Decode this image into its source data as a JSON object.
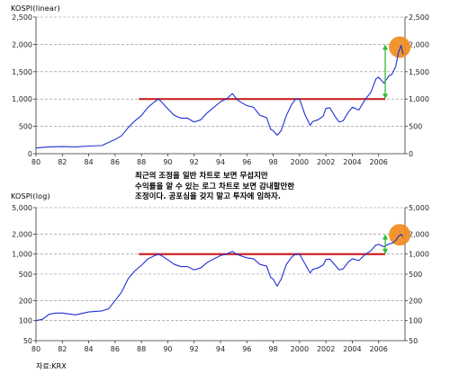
{
  "chart_data": [
    {
      "type": "line",
      "title": "KOSPI(linear)",
      "scale": "linear",
      "ylim": [
        0,
        2500
      ],
      "y_ticks": [
        0,
        500,
        1000,
        1500,
        2000,
        2500
      ],
      "y_tick_labels": [
        "0",
        "500",
        "1,000",
        "1,500",
        "2,000",
        "2,500"
      ],
      "xlim": [
        1980,
        2008
      ],
      "x_ticks": [
        1980,
        1982,
        1984,
        1986,
        1988,
        1990,
        1992,
        1994,
        1996,
        1998,
        2000,
        2002,
        2004,
        2006
      ],
      "x_tick_labels": [
        "80",
        "82",
        "84",
        "86",
        "88",
        "90",
        "92",
        "94",
        "96",
        "98",
        "2000",
        "2002",
        "2004",
        "2006"
      ],
      "grid": "horizontal dashed",
      "line_color": "#1f2fd6",
      "series": [
        {
          "x": [
            1980,
            1981,
            1982,
            1983,
            1984,
            1985,
            1986,
            1986.5,
            1987,
            1987.5,
            1988,
            1988.5,
            1989,
            1989.3,
            1989.6,
            1990,
            1990.5,
            1991,
            1991.5,
            1992,
            1992.5,
            1993,
            1993.5,
            1994,
            1994.5,
            1994.9,
            1995.3,
            1995.7,
            1996,
            1996.5,
            1997,
            1997.5,
            1997.8,
            1998,
            1998.3,
            1998.6,
            1999,
            1999.4,
            1999.7,
            2000,
            2000.4,
            2000.8,
            2001,
            2001.4,
            2001.8,
            2002,
            2002.3,
            2002.7,
            2003,
            2003.3,
            2003.7,
            2004,
            2004.5,
            2005,
            2005.4,
            2005.8,
            2006,
            2006.4,
            2006.8,
            2007,
            2007.3,
            2007.5,
            2007.7,
            2007.85
          ],
          "values": [
            106,
            125,
            130,
            125,
            140,
            150,
            260,
            330,
            480,
            600,
            700,
            850,
            950,
            1000,
            930,
            820,
            700,
            650,
            650,
            580,
            620,
            750,
            850,
            950,
            1010,
            1100,
            980,
            920,
            880,
            850,
            700,
            660,
            450,
            420,
            340,
            420,
            700,
            900,
            1000,
            1000,
            720,
            520,
            590,
            620,
            690,
            830,
            840,
            680,
            580,
            600,
            760,
            850,
            800,
            1000,
            1120,
            1370,
            1400,
            1290,
            1430,
            1450,
            1600,
            1850,
            1980,
            1820
          ]
        }
      ],
      "annotations": [
        {
          "kind": "horizontal-line",
          "y": 1000,
          "x_from": 1987.8,
          "x_to": 2006.5,
          "color": "#cc2222"
        },
        {
          "kind": "double-arrow",
          "x": 2006.5,
          "y_from": 1000,
          "y_to": 2000,
          "color": "#33bb33"
        },
        {
          "kind": "highlight-circle",
          "x": 2007.6,
          "y": 1950,
          "color": "#f08c1e"
        }
      ]
    },
    {
      "type": "line",
      "title": "KOSPI(log)",
      "scale": "log",
      "ylim": [
        50,
        5000
      ],
      "y_ticks": [
        50,
        100,
        200,
        500,
        1000,
        2000,
        5000
      ],
      "y_tick_labels": [
        "50",
        "100",
        "200",
        "500",
        "1,000",
        "2,000",
        "5,000"
      ],
      "xlim": [
        1980,
        2008
      ],
      "x_ticks": [
        1980,
        1982,
        1984,
        1986,
        1988,
        1990,
        1992,
        1994,
        1996,
        1998,
        2000,
        2002,
        2004,
        2006
      ],
      "x_tick_labels": [
        "80",
        "82",
        "84",
        "86",
        "88",
        "90",
        "92",
        "94",
        "96",
        "98",
        "2000",
        "2002",
        "2004",
        "2006"
      ],
      "grid": "horizontal dashed",
      "line_color": "#1f2fd6",
      "series": [
        {
          "x": [
            1980,
            1980.5,
            1981,
            1981.5,
            1982,
            1983,
            1984,
            1985,
            1985.5,
            1986,
            1986.5,
            1987,
            1987.5,
            1988,
            1988.5,
            1989,
            1989.3,
            1989.6,
            1990,
            1990.5,
            1991,
            1991.5,
            1992,
            1992.5,
            1993,
            1993.5,
            1994,
            1994.5,
            1994.9,
            1995.3,
            1995.7,
            1996,
            1996.5,
            1997,
            1997.5,
            1997.8,
            1998,
            1998.3,
            1998.6,
            1999,
            1999.4,
            1999.7,
            2000,
            2000.4,
            2000.8,
            2001,
            2001.4,
            2001.8,
            2002,
            2002.3,
            2002.7,
            2003,
            2003.3,
            2003.7,
            2004,
            2004.5,
            2005,
            2005.4,
            2005.8,
            2006,
            2006.4,
            2006.8,
            2007,
            2007.3,
            2007.5,
            2007.7,
            2007.85
          ],
          "values": [
            100,
            105,
            125,
            130,
            130,
            122,
            135,
            140,
            150,
            200,
            270,
            430,
            560,
            680,
            850,
            950,
            1000,
            930,
            820,
            700,
            650,
            650,
            580,
            620,
            750,
            850,
            950,
            1010,
            1100,
            980,
            920,
            880,
            850,
            700,
            660,
            450,
            420,
            330,
            420,
            700,
            900,
            1000,
            1000,
            720,
            520,
            590,
            620,
            690,
            830,
            840,
            680,
            580,
            600,
            760,
            850,
            800,
            1000,
            1120,
            1370,
            1400,
            1290,
            1430,
            1450,
            1600,
            1850,
            1980,
            1820
          ]
        }
      ],
      "annotations": [
        {
          "kind": "horizontal-line",
          "y": 1000,
          "x_from": 1987.8,
          "x_to": 2006.5,
          "color": "#cc2222"
        },
        {
          "kind": "double-arrow",
          "x": 2006.5,
          "y_from": 1000,
          "y_to": 2000,
          "color": "#33bb33"
        },
        {
          "kind": "highlight-circle",
          "x": 2007.6,
          "y": 1950,
          "color": "#f08c1e"
        }
      ]
    }
  ],
  "caption": {
    "lines": [
      "최근의 조정을 일반 차트로 보면 무섭지만",
      "수익률을 알 수 있는 로그 차트로 보면 감내할만한",
      "조정이다. 공포심을 갖지 말고 투자에 임하자."
    ]
  },
  "source": "자료:KRX"
}
